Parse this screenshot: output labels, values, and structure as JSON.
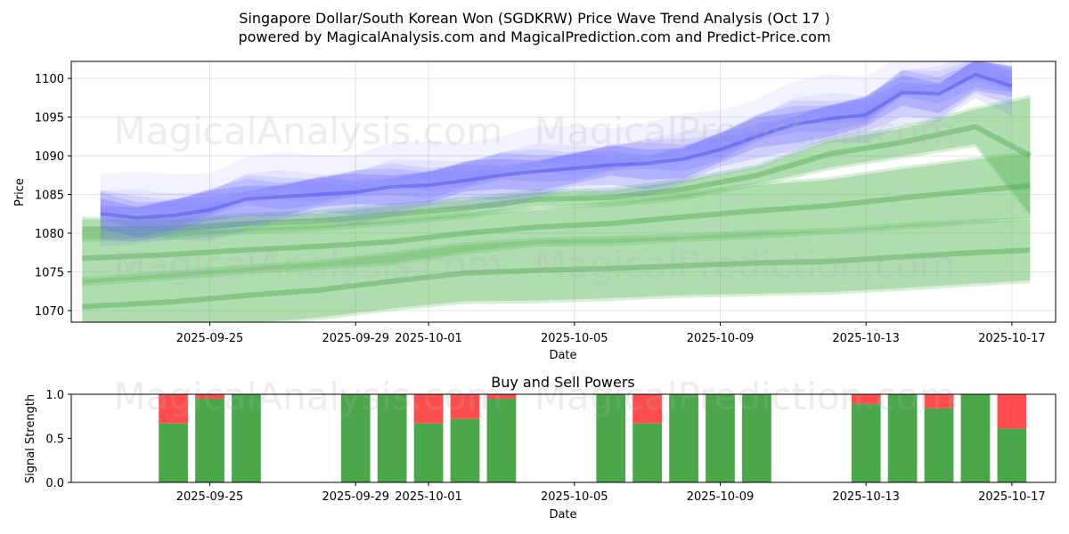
{
  "chart_data": [
    {
      "type": "area",
      "title_line1": "Singapore Dollar/South Korean Won (SGDKRW) Price Wave Trend Analysis (Oct 17 )",
      "title_line2": "powered by MagicalAnalysis.com and MagicalPrediction.com and Predict-Price.com",
      "xlabel": "Date",
      "ylabel": "Price",
      "ylim": [
        1068.5,
        1102.2
      ],
      "y_ticks": [
        1070,
        1075,
        1080,
        1085,
        1090,
        1095,
        1100
      ],
      "x_tick_labels": [
        "2025-09-25",
        "2025-09-29",
        "2025-10-01",
        "2025-10-05",
        "2025-10-09",
        "2025-10-13",
        "2025-10-17"
      ],
      "x_tick_days": [
        3,
        7,
        9,
        13,
        17,
        21,
        25
      ],
      "x_range_days": [
        -0.8,
        26.2
      ],
      "grid": true,
      "watermarks": [
        "MagicalAnalysis.com",
        "MagicalPrediction.com",
        "MagicalAnalysis.com",
        "MagicalPrediction.com"
      ],
      "price_series": {
        "name": "SGDKRW price waves (blue)",
        "days": [
          0,
          1,
          2,
          3,
          4,
          5,
          6,
          7,
          8,
          9,
          10,
          11,
          12,
          13,
          14,
          15,
          16,
          17,
          18,
          19,
          20,
          21,
          22,
          23,
          24,
          25
        ],
        "values": [
          1082.5,
          1082.0,
          1082.3,
          1083.0,
          1084.4,
          1084.7,
          1085.0,
          1085.3,
          1086.0,
          1086.2,
          1086.8,
          1087.5,
          1088.0,
          1088.4,
          1088.8,
          1089.0,
          1089.6,
          1090.8,
          1092.5,
          1094.0,
          1094.8,
          1095.3,
          1098.2,
          1098.0,
          1100.5,
          1099.0
        ]
      },
      "trend_bands": [
        {
          "name": "upper band",
          "days": [
            -0.5,
            2,
            4,
            6,
            8,
            10,
            12,
            14,
            16,
            18,
            20,
            22,
            24,
            25.5
          ],
          "upper": [
            1081.8,
            1081.7,
            1082.3,
            1082.6,
            1083.5,
            1084.3,
            1085.3,
            1085.5,
            1086.8,
            1088.5,
            1092.0,
            1093.5,
            1096.0,
            1097.5
          ],
          "lower": [
            1079.2,
            1079.5,
            1080.2,
            1080.6,
            1081.3,
            1082.2,
            1083.5,
            1083.7,
            1084.6,
            1086.4,
            1088.5,
            1090.0,
            1091.5,
            1082.5
          ]
        },
        {
          "name": "middle band",
          "days": [
            -0.5,
            2,
            4,
            6,
            8,
            10,
            12,
            14,
            16,
            18,
            20,
            22,
            24,
            25.5
          ],
          "upper": [
            1074.0,
            1074.8,
            1075.6,
            1076.2,
            1077.3,
            1078.5,
            1079.1,
            1079.3,
            1079.6,
            1080.1,
            1080.3,
            1081.0,
            1081.5,
            1081.7
          ],
          "lower": [
            1067.0,
            1067.5,
            1068.3,
            1069.1,
            1070.3,
            1071.2,
            1071.3,
            1071.6,
            1072.0,
            1072.2,
            1072.4,
            1072.9,
            1073.5,
            1073.9
          ]
        },
        {
          "name": "lower band",
          "days": [
            -0.5,
            2,
            4,
            6,
            8,
            10,
            12,
            14,
            16,
            18,
            20,
            22,
            24,
            25.5
          ],
          "upper": [
            1080.0,
            1080.2,
            1080.6,
            1081.0,
            1081.6,
            1082.4,
            1083.0,
            1083.8,
            1085.0,
            1086.2,
            1086.9,
            1088.3,
            1089.5,
            1090.3
          ],
          "lower": [
            1073.5,
            1074.3,
            1075.1,
            1075.6,
            1076.2,
            1077.6,
            1078.6,
            1078.7,
            1079.2,
            1079.6,
            1080.2,
            1080.8,
            1081.5,
            1082.0
          ]
        }
      ]
    },
    {
      "type": "bar",
      "title": "Buy and Sell Powers",
      "xlabel": "Date",
      "ylabel": "Signal Strength",
      "ylim": [
        0,
        1.0
      ],
      "y_ticks": [
        0.0,
        0.5,
        1.0
      ],
      "y_tick_labels": [
        "0.0",
        "0.5",
        "1.0"
      ],
      "x_tick_labels": [
        "2025-09-25",
        "2025-09-29",
        "2025-10-01",
        "2025-10-05",
        "2025-10-09",
        "2025-10-13",
        "2025-10-17"
      ],
      "x_tick_days": [
        3,
        7,
        9,
        13,
        17,
        21,
        25
      ],
      "x_range_days": [
        -0.8,
        26.2
      ],
      "colors": {
        "buy": "#4aa84a",
        "sell": "#ff4d4d"
      },
      "days": [
        2,
        3,
        4,
        7,
        8,
        9,
        10,
        11,
        14,
        15,
        16,
        17,
        18,
        21,
        22,
        23,
        24,
        25
      ],
      "buy": [
        0.67,
        0.95,
        1.0,
        1.0,
        1.0,
        0.67,
        0.72,
        0.95,
        1.0,
        0.67,
        1.0,
        1.0,
        1.0,
        0.89,
        1.0,
        0.84,
        1.0,
        0.61
      ],
      "sell": [
        0.33,
        0.05,
        0.0,
        0.0,
        0.0,
        0.33,
        0.28,
        0.05,
        0.0,
        0.33,
        0.0,
        0.0,
        0.0,
        0.11,
        0.0,
        0.16,
        0.0,
        0.39
      ]
    }
  ]
}
